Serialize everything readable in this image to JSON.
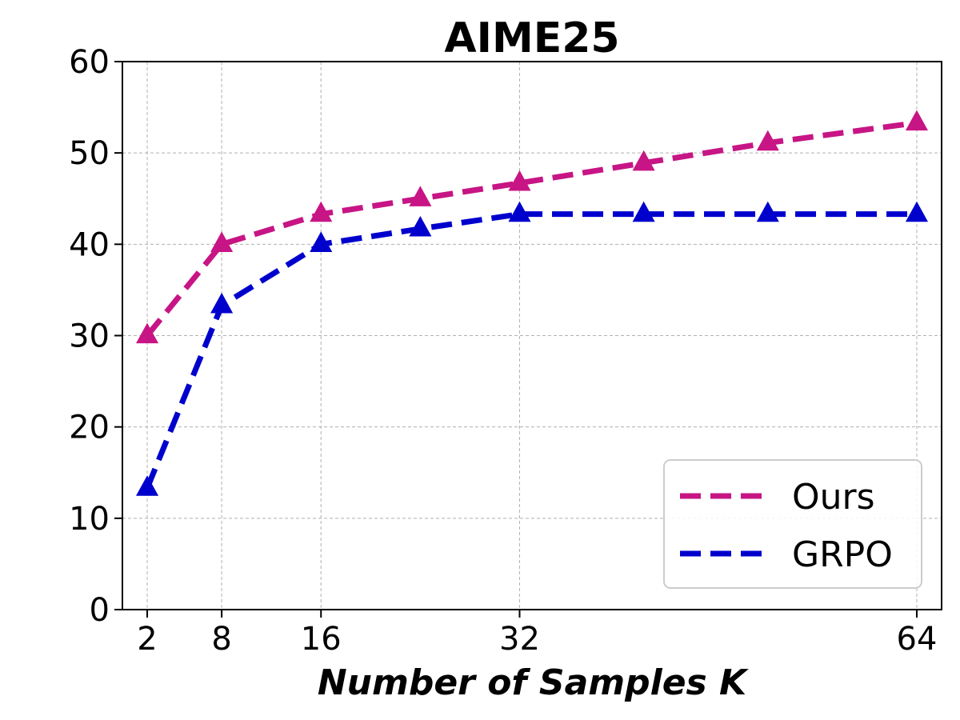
{
  "chart_data": {
    "type": "line",
    "title": "AIME25",
    "xlabel": "Number of Samples K",
    "ylabel": "",
    "xlim": [
      0,
      66
    ],
    "ylim": [
      0,
      60
    ],
    "x_ticks": [
      2,
      8,
      16,
      32,
      64
    ],
    "y_ticks": [
      0,
      10,
      20,
      30,
      40,
      50,
      60
    ],
    "grid": true,
    "legend_position": "lower-right",
    "x": [
      2,
      8,
      16,
      24,
      32,
      42,
      52,
      64
    ],
    "series": [
      {
        "name": "Ours",
        "color": "#c71585",
        "line_style": "dashed",
        "marker": "triangle",
        "values": [
          30.0,
          40.0,
          43.3,
          45.0,
          46.7,
          48.9,
          51.1,
          53.3
        ]
      },
      {
        "name": "GRPO",
        "color": "#0000cd",
        "line_style": "dashed",
        "marker": "triangle",
        "values": [
          13.3,
          33.3,
          40.0,
          41.7,
          43.3,
          43.3,
          43.3,
          43.3
        ]
      }
    ]
  }
}
